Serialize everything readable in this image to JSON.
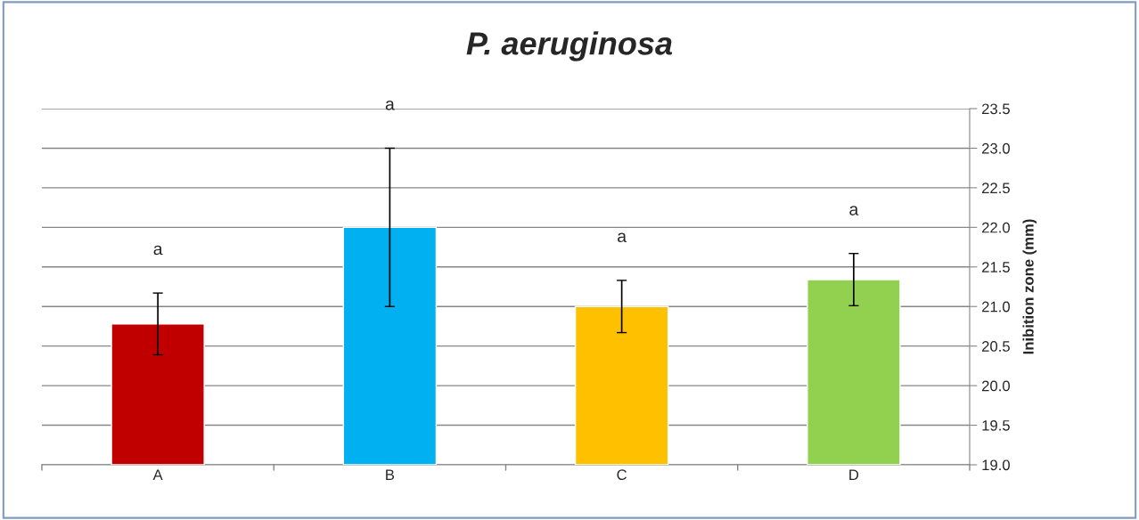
{
  "chart_data": {
    "type": "bar",
    "title": "P. aeruginosa",
    "ylabel": "Inibition zone (mm)",
    "categories": [
      "A",
      "B",
      "C",
      "D"
    ],
    "values": [
      20.78,
      22.0,
      21.0,
      21.34
    ],
    "errors": [
      0.39,
      1.0,
      0.33,
      0.33
    ],
    "colors": [
      "#c00000",
      "#00b0f0",
      "#ffc000",
      "#92d050"
    ],
    "ylim": [
      19.0,
      23.5
    ],
    "yticks": [
      {
        "value": 19.0,
        "label": "19.0"
      },
      {
        "value": 19.5,
        "label": "19.5"
      },
      {
        "value": 20.0,
        "label": "20.0"
      },
      {
        "value": 20.5,
        "label": "20.5"
      },
      {
        "value": 21.0,
        "label": "21.0"
      },
      {
        "value": 21.5,
        "label": "21.5"
      },
      {
        "value": 22.0,
        "label": "22.0"
      },
      {
        "value": 22.5,
        "label": "22.5"
      },
      {
        "value": 23.0,
        "label": "23.0"
      },
      {
        "value": 23.5,
        "label": "23.5"
      }
    ],
    "grid": "y",
    "annotations": [
      "a",
      "a",
      "a",
      "a"
    ]
  }
}
